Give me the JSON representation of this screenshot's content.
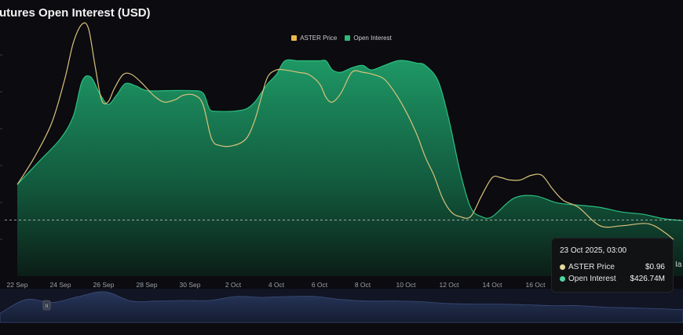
{
  "title": "utures Open Interest (USD)",
  "colors": {
    "background": "#0b0b10",
    "price": "#d9c27a",
    "open_interest": "#1fa06a",
    "legend_price": "#e8b84a",
    "legend_oi": "#2fb879"
  },
  "legend": [
    {
      "label": "ASTER Price",
      "color": "#e8b84a"
    },
    {
      "label": "Open Interest",
      "color": "#2fb879"
    }
  ],
  "tooltip": {
    "date": "23 Oct 2025, 03:00",
    "rows": [
      {
        "label": "ASTER Price",
        "value": "$0.96",
        "dot": "#e8d7a0"
      },
      {
        "label": "Open Interest",
        "value": "$426.74M",
        "dot": "#4fd6a0"
      }
    ]
  },
  "chart_data": {
    "type": "area",
    "title": "utures Open Interest (USD)",
    "x_ticks": [
      "22 Sep",
      "24 Sep",
      "26 Sep",
      "28 Sep",
      "30 Sep",
      "2 Oct",
      "4 Oct",
      "6 Oct",
      "8 Oct",
      "10 Oct",
      "12 Oct",
      "14 Oct",
      "16 Oct"
    ],
    "x_range": [
      0,
      31.3
    ],
    "y_range": [
      0,
      1
    ],
    "ylabel": "",
    "grid": false,
    "legend_position": "top-center",
    "series": [
      {
        "name": "Open Interest",
        "kind": "area",
        "x": [
          0,
          1,
          2,
          2.6,
          3,
          3.4,
          3.8,
          4.2,
          4.6,
          5,
          5.5,
          6,
          7,
          8,
          8.6,
          8.9,
          9.2,
          10,
          10.6,
          11,
          11.3,
          11.6,
          12,
          12.4,
          13,
          13.6,
          14,
          14.3,
          14.6,
          15,
          15.5,
          16,
          16.4,
          17,
          17.6,
          18,
          18.5,
          18.9,
          19.5,
          20,
          20.5,
          21,
          21.5,
          22,
          23,
          24,
          25,
          26,
          27,
          28,
          29,
          30,
          31.3
        ],
        "values": [
          0.4,
          0.5,
          0.6,
          0.7,
          0.85,
          0.87,
          0.8,
          0.75,
          0.79,
          0.84,
          0.83,
          0.81,
          0.81,
          0.81,
          0.8,
          0.73,
          0.72,
          0.72,
          0.73,
          0.76,
          0.8,
          0.84,
          0.88,
          0.94,
          0.94,
          0.94,
          0.94,
          0.94,
          0.9,
          0.89,
          0.91,
          0.92,
          0.9,
          0.92,
          0.94,
          0.94,
          0.93,
          0.92,
          0.85,
          0.68,
          0.46,
          0.3,
          0.26,
          0.26,
          0.34,
          0.35,
          0.32,
          0.31,
          0.3,
          0.28,
          0.27,
          0.25,
          0.24
        ]
      },
      {
        "name": "ASTER Price",
        "kind": "line",
        "x": [
          0,
          0.8,
          1.6,
          2.2,
          2.6,
          3,
          3.3,
          3.6,
          3.9,
          4.2,
          4.5,
          4.9,
          5.3,
          5.8,
          6.3,
          6.8,
          7.3,
          7.7,
          8.2,
          8.6,
          9,
          9.4,
          10,
          10.6,
          11,
          11.3,
          11.6,
          12,
          12.4,
          13,
          13.5,
          14,
          14.3,
          14.6,
          15,
          15.5,
          16,
          16.5,
          17,
          17.5,
          18,
          18.5,
          18.9,
          19.3,
          19.7,
          20.1,
          20.5,
          21,
          21.5,
          22,
          22.4,
          22.8,
          23.3,
          23.8,
          24.3,
          24.8,
          25.3,
          26,
          27,
          28,
          29,
          29.5,
          30,
          30.4
        ],
        "values": [
          0.4,
          0.52,
          0.67,
          0.86,
          1.02,
          1.1,
          1.08,
          0.92,
          0.77,
          0.76,
          0.82,
          0.88,
          0.88,
          0.84,
          0.79,
          0.76,
          0.77,
          0.79,
          0.79,
          0.75,
          0.6,
          0.57,
          0.57,
          0.6,
          0.68,
          0.78,
          0.87,
          0.9,
          0.9,
          0.89,
          0.88,
          0.84,
          0.78,
          0.76,
          0.8,
          0.89,
          0.89,
          0.88,
          0.86,
          0.8,
          0.72,
          0.62,
          0.52,
          0.44,
          0.34,
          0.28,
          0.26,
          0.26,
          0.35,
          0.43,
          0.43,
          0.42,
          0.42,
          0.44,
          0.44,
          0.38,
          0.33,
          0.3,
          0.22,
          0.22,
          0.23,
          0.22,
          0.19,
          0.16
        ]
      }
    ],
    "reference_line": {
      "style": "dashed",
      "value": 0.245
    },
    "annotations": [
      "23 Oct 2025, 03:00",
      "Ia"
    ]
  },
  "navigator": {
    "handle_label": "II",
    "values": [
      0.3,
      0.75,
      0.65,
      0.85,
      1.0,
      0.7,
      0.7,
      0.72,
      0.72,
      0.85,
      0.82,
      0.85,
      0.85,
      0.75,
      0.7,
      0.7,
      0.68,
      0.62,
      0.6,
      0.6,
      0.58,
      0.55,
      0.55,
      0.5,
      0.48,
      0.45,
      0.42
    ]
  },
  "edge_label": "Ia"
}
